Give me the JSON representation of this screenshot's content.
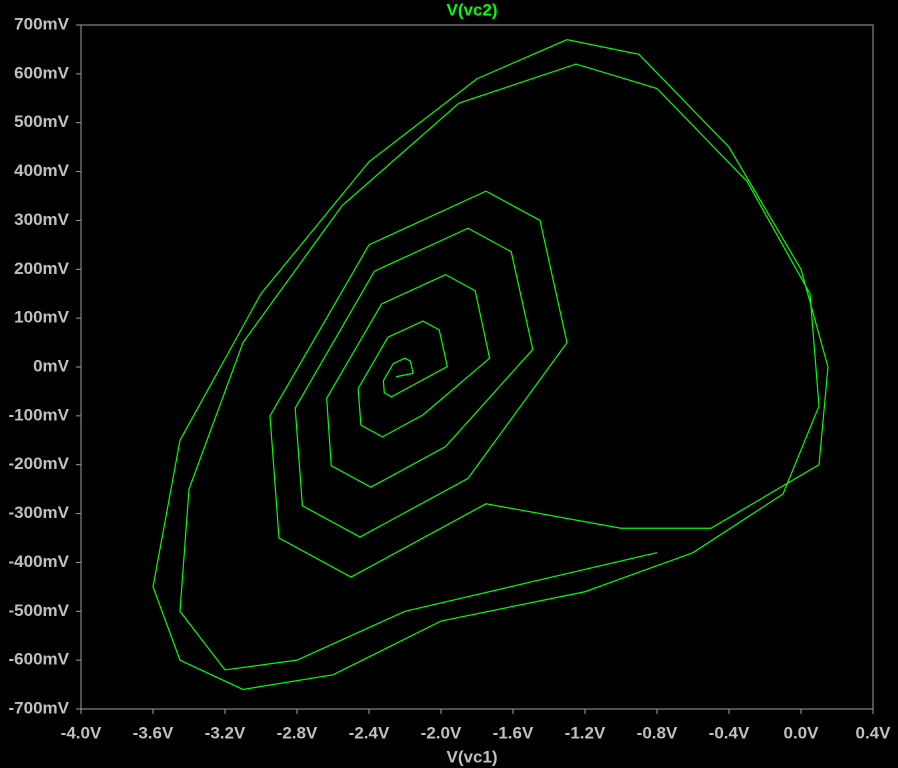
{
  "chart_data": {
    "type": "line",
    "title": "V(vc2)",
    "x_label": "V(vc1)",
    "xlim": [
      -4.0,
      0.4
    ],
    "xticks": [
      {
        "value": -4.0,
        "label": "-4.0V"
      },
      {
        "value": -3.6,
        "label": "-3.6V"
      },
      {
        "value": -3.2,
        "label": "-3.2V"
      },
      {
        "value": -2.8,
        "label": "-2.8V"
      },
      {
        "value": -2.4,
        "label": "-2.4V"
      },
      {
        "value": -2.0,
        "label": "-2.0V"
      },
      {
        "value": -1.6,
        "label": "-1.6V"
      },
      {
        "value": -1.2,
        "label": "-1.2V"
      },
      {
        "value": -0.8,
        "label": "-0.8V"
      },
      {
        "value": -0.4,
        "label": "-0.4V"
      },
      {
        "value": 0.0,
        "label": "0.0V"
      },
      {
        "value": 0.4,
        "label": "0.4V"
      }
    ],
    "ylim": [
      -700,
      700
    ],
    "yticks": [
      {
        "value": 700,
        "label": "700mV"
      },
      {
        "value": 600,
        "label": "600mV"
      },
      {
        "value": 500,
        "label": "500mV"
      },
      {
        "value": 400,
        "label": "400mV"
      },
      {
        "value": 300,
        "label": "300mV"
      },
      {
        "value": 200,
        "label": "200mV"
      },
      {
        "value": 100,
        "label": "100mV"
      },
      {
        "value": 0,
        "label": "0mV"
      },
      {
        "value": -100,
        "label": "-100mV"
      },
      {
        "value": -200,
        "label": "-200mV"
      },
      {
        "value": -300,
        "label": "-300mV"
      },
      {
        "value": -400,
        "label": "-400mV"
      },
      {
        "value": -500,
        "label": "-500mV"
      },
      {
        "value": -600,
        "label": "-600mV"
      },
      {
        "value": -700,
        "label": "-700mV"
      }
    ],
    "series": [
      {
        "name": "V(vc2)",
        "color": "#00ff00",
        "x": [
          -2.25,
          -2.155,
          -2.17,
          -2.2,
          -2.265,
          -2.32,
          -2.315,
          -2.275,
          -2.2,
          -1.965,
          -2.01,
          -2.1,
          -2.295,
          -2.46,
          -2.445,
          -2.325,
          -2.1,
          -1.73,
          -1.81,
          -1.975,
          -2.33,
          -2.635,
          -2.61,
          -2.39,
          -1.975,
          -1.49,
          -1.61,
          -1.85,
          -2.37,
          -2.81,
          -2.77,
          -2.45,
          -1.85,
          -1.3,
          -1.45,
          -1.75,
          -2.4,
          -2.95,
          -2.9,
          -2.5,
          -1.75,
          -1.0,
          -0.5,
          0.1,
          0.15,
          0.0,
          -0.4,
          -0.9,
          -1.3,
          -1.8,
          -2.4,
          -3.0,
          -3.45,
          -3.6,
          -3.45,
          -3.1,
          -2.6,
          -2.0,
          -1.2,
          -0.6,
          -0.1,
          0.1,
          0.05,
          -0.3,
          -0.8,
          -1.25,
          -1.9,
          -2.55,
          -3.1,
          -3.4,
          -3.45,
          -3.2,
          -2.8,
          -2.2,
          -1.5,
          -0.8
        ],
        "values": [
          -20,
          -13,
          12,
          18,
          7,
          -28,
          -53,
          -61,
          -46,
          1,
          76,
          94,
          61,
          -44,
          -119,
          -143,
          -98,
          18,
          156,
          189,
          129,
          -64,
          -202,
          -246,
          -163,
          36,
          236,
          284,
          196,
          -84,
          -284,
          -348,
          -228,
          50,
          300,
          360,
          250,
          -100,
          -350,
          -430,
          -280,
          -330,
          -330,
          -200,
          0,
          200,
          450,
          640,
          670,
          590,
          420,
          150,
          -150,
          -450,
          -600,
          -660,
          -630,
          -520,
          -460,
          -380,
          -260,
          -80,
          150,
          380,
          570,
          620,
          540,
          330,
          50,
          -250,
          -500,
          -620,
          -600,
          -500,
          -440,
          -380
        ]
      }
    ],
    "grid": false
  }
}
